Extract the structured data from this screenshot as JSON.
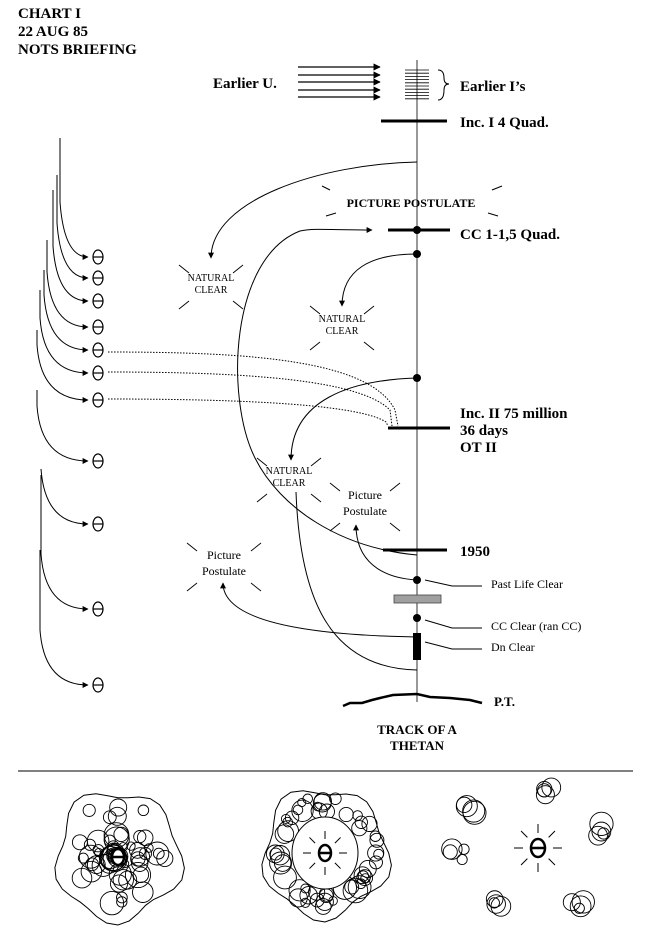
{
  "header": {
    "line1": "CHART I",
    "line2": "22 AUG 85",
    "line3": "NOTS BRIEFING"
  },
  "labels": {
    "earlier_u": "Earlier U.",
    "earlier_is": "Earlier I’s",
    "inc1": "Inc. I   4 Quad.",
    "picture_postulate_top": "PICTURE POSTULATE",
    "cc": "CC  1-1,5 Quad.",
    "natural": "NATURAL",
    "clear": "CLEAR",
    "inc2_line1": "Inc. II 75 million",
    "inc2_line2": "36 days",
    "inc2_line3": "OT II",
    "picture": "Picture",
    "postulate": "Postulate",
    "year_1950": "1950",
    "past_life_clear": "Past Life Clear",
    "cc_clear": "CC Clear (ran CC)",
    "dn_clear": "Dn Clear",
    "pt": "P.T.",
    "track_line1": "TRACK OF A",
    "track_line2": "THETAN"
  },
  "colors": {
    "ink": "#000000",
    "grey_bar": "#a0a0a0",
    "track": "#555555"
  }
}
